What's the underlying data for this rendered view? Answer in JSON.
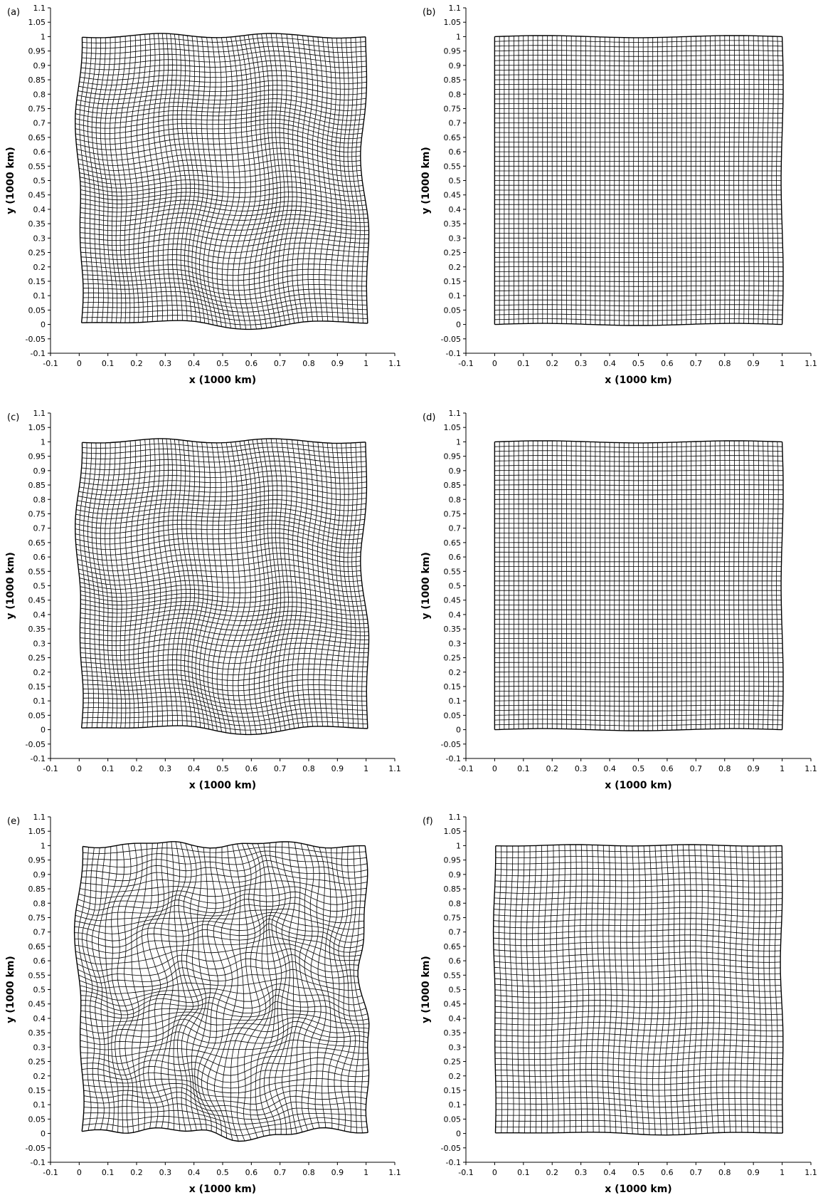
{
  "chart_data": [
    {
      "type": "mesh",
      "panel_label": "(a)",
      "xlabel": "x (1000 km)",
      "ylabel": "y (1000 km)",
      "xlim": [
        -0.1,
        1.1
      ],
      "ylim": [
        -0.1,
        1.1
      ],
      "x_ticks": [
        "-0.1",
        "0",
        "0.1",
        "0.2",
        "0.3",
        "0.4",
        "0.5",
        "0.6",
        "0.7",
        "0.8",
        "0.9",
        "1",
        "1.1"
      ],
      "y_ticks": [
        "-0.1",
        "-0.05",
        "0",
        "0.05",
        "0.1",
        "0.15",
        "0.2",
        "0.25",
        "0.3",
        "0.35",
        "0.4",
        "0.45",
        "0.5",
        "0.55",
        "0.6",
        "0.65",
        "0.7",
        "0.75",
        "0.8",
        "0.85",
        "0.9",
        "0.95",
        "1",
        "1.05",
        "1.1"
      ],
      "mesh": {
        "cells_x": 60,
        "cells_y": 60,
        "domain": [
          0,
          1,
          0,
          1
        ],
        "deformation": "strong",
        "max_displacement": 0.05
      }
    },
    {
      "type": "mesh",
      "panel_label": "(b)",
      "xlabel": "x (1000 km)",
      "ylabel": "y (1000 km)",
      "xlim": [
        -0.1,
        1.1
      ],
      "ylim": [
        -0.1,
        1.1
      ],
      "x_ticks": [
        "-0.1",
        "0",
        "0.1",
        "0.2",
        "0.3",
        "0.4",
        "0.5",
        "0.6",
        "0.7",
        "0.8",
        "0.9",
        "1",
        "1.1"
      ],
      "y_ticks": [
        "-0.1",
        "-0.05",
        "0",
        "0.05",
        "0.1",
        "0.15",
        "0.2",
        "0.25",
        "0.3",
        "0.35",
        "0.4",
        "0.45",
        "0.5",
        "0.55",
        "0.6",
        "0.65",
        "0.7",
        "0.75",
        "0.8",
        "0.85",
        "0.9",
        "0.95",
        "1",
        "1.05",
        "1.1"
      ],
      "mesh": {
        "cells_x": 60,
        "cells_y": 60,
        "domain": [
          0,
          1,
          0,
          1
        ],
        "deformation": "near-regular",
        "max_displacement": 0.012
      }
    },
    {
      "type": "mesh",
      "panel_label": "(c)",
      "xlabel": "x (1000 km)",
      "ylabel": "y (1000 km)",
      "xlim": [
        -0.1,
        1.1
      ],
      "ylim": [
        -0.1,
        1.1
      ],
      "x_ticks": [
        "-0.1",
        "0",
        "0.1",
        "0.2",
        "0.3",
        "0.4",
        "0.5",
        "0.6",
        "0.7",
        "0.8",
        "0.9",
        "1",
        "1.1"
      ],
      "y_ticks": [
        "-0.1",
        "-0.05",
        "0",
        "0.05",
        "0.1",
        "0.15",
        "0.2",
        "0.25",
        "0.3",
        "0.35",
        "0.4",
        "0.45",
        "0.5",
        "0.55",
        "0.6",
        "0.65",
        "0.7",
        "0.75",
        "0.8",
        "0.85",
        "0.9",
        "0.95",
        "1",
        "1.05",
        "1.1"
      ],
      "mesh": {
        "cells_x": 60,
        "cells_y": 60,
        "domain": [
          0,
          1,
          0,
          1
        ],
        "deformation": "strong",
        "max_displacement": 0.05
      }
    },
    {
      "type": "mesh",
      "panel_label": "(d)",
      "xlabel": "x (1000 km)",
      "ylabel": "y (1000 km)",
      "xlim": [
        -0.1,
        1.1
      ],
      "ylim": [
        -0.1,
        1.1
      ],
      "x_ticks": [
        "-0.1",
        "0",
        "0.1",
        "0.2",
        "0.3",
        "0.4",
        "0.5",
        "0.6",
        "0.7",
        "0.8",
        "0.9",
        "1",
        "1.1"
      ],
      "y_ticks": [
        "-0.1",
        "-0.05",
        "0",
        "0.05",
        "0.1",
        "0.15",
        "0.2",
        "0.25",
        "0.3",
        "0.35",
        "0.4",
        "0.45",
        "0.5",
        "0.55",
        "0.6",
        "0.65",
        "0.7",
        "0.75",
        "0.8",
        "0.85",
        "0.9",
        "0.95",
        "1",
        "1.05",
        "1.1"
      ],
      "mesh": {
        "cells_x": 60,
        "cells_y": 60,
        "domain": [
          0,
          1,
          0,
          1
        ],
        "deformation": "near-regular",
        "max_displacement": 0.012
      }
    },
    {
      "type": "mesh",
      "panel_label": "(e)",
      "xlabel": "x (1000 km)",
      "ylabel": "y (1000 km)",
      "xlim": [
        -0.1,
        1.1
      ],
      "ylim": [
        -0.1,
        1.1
      ],
      "x_ticks": [
        "-0.1",
        "0",
        "0.1",
        "0.2",
        "0.3",
        "0.4",
        "0.5",
        "0.6",
        "0.7",
        "0.8",
        "0.9",
        "1",
        "1.1"
      ],
      "y_ticks": [
        "-0.1",
        "-0.05",
        "0",
        "0.05",
        "0.1",
        "0.15",
        "0.2",
        "0.25",
        "0.3",
        "0.35",
        "0.4",
        "0.45",
        "0.5",
        "0.55",
        "0.6",
        "0.65",
        "0.7",
        "0.75",
        "0.8",
        "0.85",
        "0.9",
        "0.95",
        "1",
        "1.05",
        "1.1"
      ],
      "mesh": {
        "cells_x": 50,
        "cells_y": 50,
        "domain": [
          0,
          1,
          0,
          1
        ],
        "deformation": "strong-tangled",
        "max_displacement": 0.06
      }
    },
    {
      "type": "mesh",
      "panel_label": "(f)",
      "xlabel": "x (1000 km)",
      "ylabel": "y (1000 km)",
      "xlim": [
        -0.1,
        1.1
      ],
      "ylim": [
        -0.1,
        1.1
      ],
      "x_ticks": [
        "-0.1",
        "0",
        "0.1",
        "0.2",
        "0.3",
        "0.4",
        "0.5",
        "0.6",
        "0.7",
        "0.8",
        "0.9",
        "1",
        "1.1"
      ],
      "y_ticks": [
        "-0.1",
        "-0.05",
        "0",
        "0.05",
        "0.1",
        "0.15",
        "0.2",
        "0.25",
        "0.3",
        "0.35",
        "0.4",
        "0.45",
        "0.5",
        "0.55",
        "0.6",
        "0.65",
        "0.7",
        "0.75",
        "0.8",
        "0.85",
        "0.9",
        "0.95",
        "1",
        "1.05",
        "1.1"
      ],
      "mesh": {
        "cells_x": 50,
        "cells_y": 50,
        "domain": [
          0,
          1,
          0,
          1
        ],
        "deformation": "moderate",
        "max_displacement": 0.02
      }
    }
  ]
}
